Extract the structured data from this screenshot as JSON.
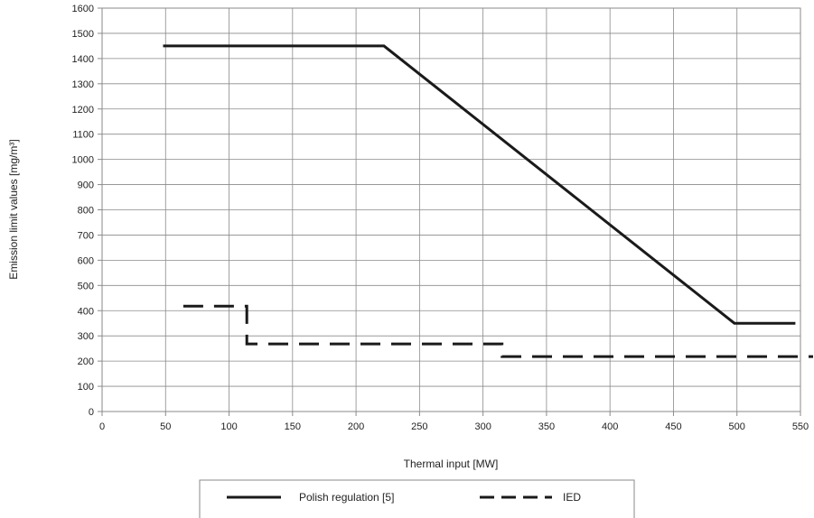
{
  "chart_data": {
    "type": "line",
    "title": "",
    "xlabel": "Thermal input [MW]",
    "ylabel": "Emission limit values [mg/m³]",
    "xlim": [
      0,
      550
    ],
    "ylim": [
      0,
      1600
    ],
    "xticks": [
      0,
      50,
      100,
      150,
      200,
      250,
      300,
      350,
      400,
      450,
      500,
      550
    ],
    "yticks": [
      0,
      100,
      200,
      300,
      400,
      500,
      600,
      700,
      800,
      900,
      1000,
      1100,
      1200,
      1300,
      1400,
      1500,
      1600
    ],
    "grid": true,
    "legend_position": "bottom",
    "series": [
      {
        "name": "Polish regulation [5]",
        "style": "solid",
        "color": "#1a1a1a",
        "x": [
          48,
          222,
          498,
          546
        ],
        "y": [
          1450,
          1450,
          350,
          350
        ]
      },
      {
        "name": "IED",
        "style": "dashed",
        "color": "#1a1a1a",
        "x": [
          64,
          114,
          114,
          114,
          315,
          315,
          315,
          560
        ],
        "y": [
          418,
          418,
          418,
          268,
          268,
          268,
          218,
          218
        ]
      }
    ]
  }
}
